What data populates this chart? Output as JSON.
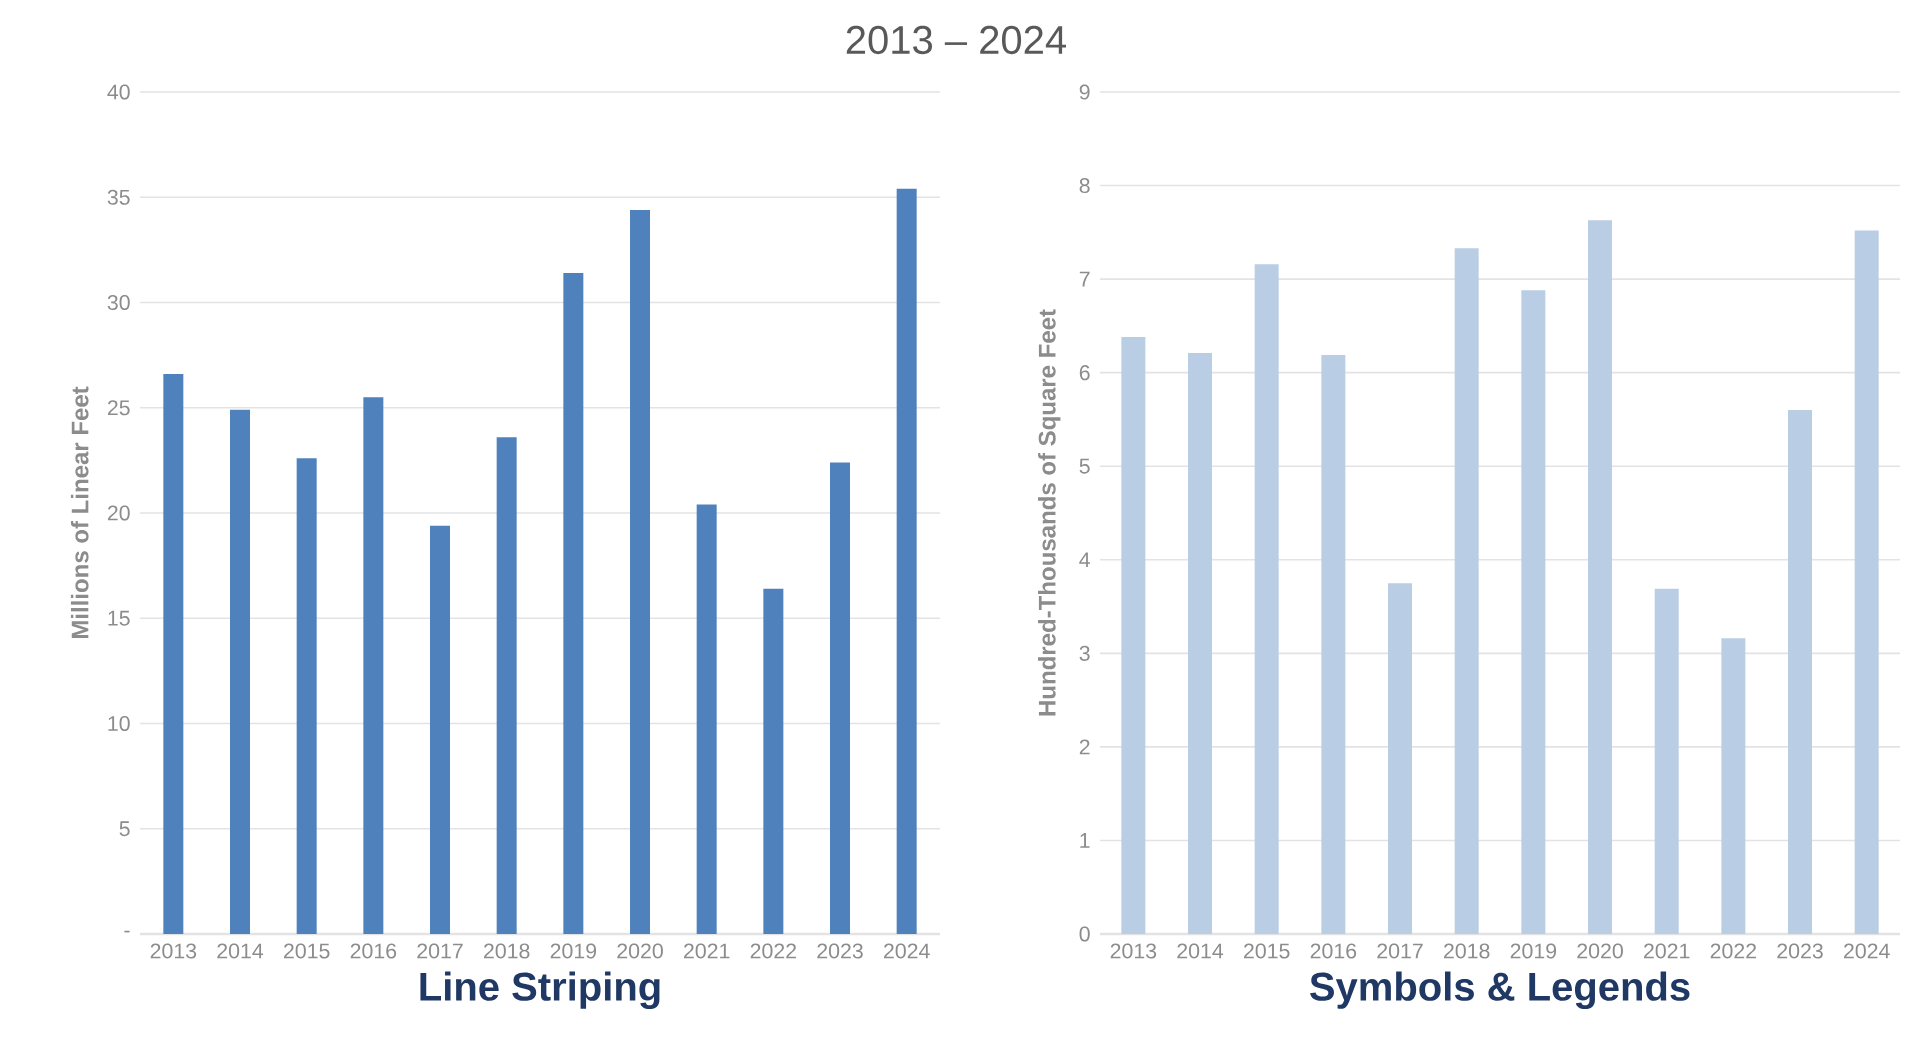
{
  "chart_data": [
    {
      "type": "bar",
      "title": "2013 – 2024",
      "xlabel": "Line Striping",
      "ylabel": "Millions of Linear Feet",
      "categories": [
        "2013",
        "2014",
        "2015",
        "2016",
        "2017",
        "2018",
        "2019",
        "2020",
        "2021",
        "2022",
        "2023",
        "2024"
      ],
      "values": [
        26.6,
        24.9,
        22.6,
        25.5,
        19.4,
        23.6,
        31.4,
        34.4,
        20.4,
        16.4,
        22.4,
        35.4
      ],
      "color": "#4f81bd",
      "ylim": [
        0,
        40
      ],
      "yticks": [
        {
          "value": 0,
          "label": "-"
        },
        5,
        10,
        15,
        20,
        25,
        30,
        35,
        40
      ],
      "grid": "y"
    },
    {
      "type": "bar",
      "xlabel": "Symbols & Legends",
      "ylabel": "Hundred-Thousands of Square Feet",
      "categories": [
        "2013",
        "2014",
        "2015",
        "2016",
        "2017",
        "2018",
        "2019",
        "2020",
        "2021",
        "2022",
        "2023",
        "2024"
      ],
      "values": [
        6.38,
        6.21,
        7.16,
        6.19,
        3.75,
        7.33,
        6.88,
        7.63,
        3.69,
        3.16,
        5.6,
        7.52
      ],
      "color": "#b9cde5",
      "ylim": [
        0,
        9
      ],
      "yticks": [
        0,
        1,
        2,
        3,
        4,
        5,
        6,
        7,
        8,
        9
      ],
      "grid": "y"
    }
  ]
}
